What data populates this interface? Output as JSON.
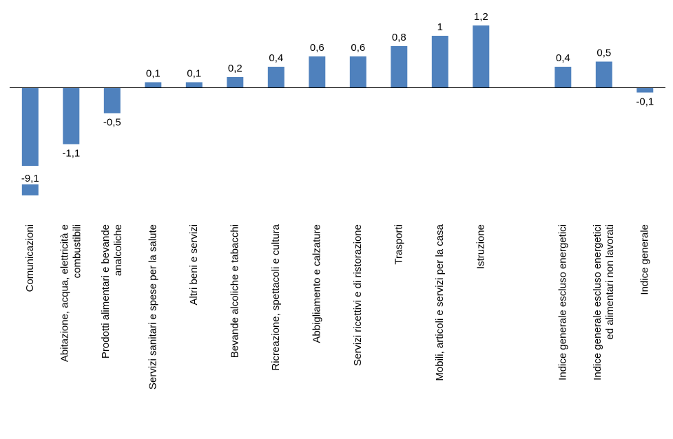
{
  "chart_data": {
    "type": "bar",
    "categories": [
      [
        "Comunicazioni"
      ],
      [
        "Abitazione, acqua, elettricità e",
        "combustibili"
      ],
      [
        "Prodotti alimentari e bevande",
        "analcoliche"
      ],
      [
        "Servizi sanitari e spese per la salute"
      ],
      [
        "Altri beni e servizi"
      ],
      [
        "Bevande alcoliche e tabacchi"
      ],
      [
        "Ricreazione, spettacoli e cultura"
      ],
      [
        "Abbigliamento e calzature"
      ],
      [
        "Servizi ricettivi e di ristorazione"
      ],
      [
        "Trasporti"
      ],
      [
        "Mobili, articoli e servizi per la casa"
      ],
      [
        "Istruzione"
      ],
      [],
      [
        "Indice generale escluso energetici"
      ],
      [
        "Indice generale escluso energetici",
        "ed alimentari non lavorati"
      ],
      [
        "Indice generale"
      ]
    ],
    "values": [
      -9.1,
      -1.1,
      -0.5,
      0.1,
      0.1,
      0.2,
      0.4,
      0.6,
      0.6,
      0.8,
      1,
      1.2,
      null,
      0.4,
      0.5,
      -0.1
    ],
    "data_labels": [
      "-9,1",
      "-1,1",
      "-0,5",
      "0,1",
      "0,1",
      "0,2",
      "0,4",
      "0,6",
      "0,6",
      "0,8",
      "1",
      "1,2",
      "",
      "0,4",
      "0,5",
      "-0,1"
    ],
    "bar_color": "#4f81bd",
    "title": "",
    "xlabel": "",
    "ylabel": "",
    "axis_break": "the -9,1 bar is drawn truncated",
    "grid": false,
    "legend": "none"
  }
}
